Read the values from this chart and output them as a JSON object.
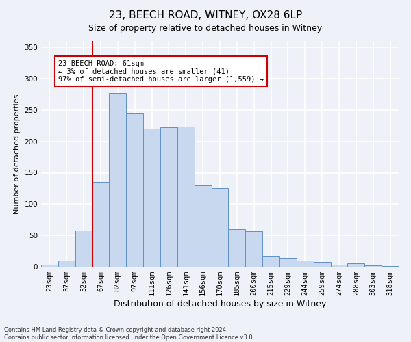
{
  "title1": "23, BEECH ROAD, WITNEY, OX28 6LP",
  "title2": "Size of property relative to detached houses in Witney",
  "xlabel": "Distribution of detached houses by size in Witney",
  "ylabel": "Number of detached properties",
  "categories": [
    "23sqm",
    "37sqm",
    "52sqm",
    "67sqm",
    "82sqm",
    "97sqm",
    "111sqm",
    "126sqm",
    "141sqm",
    "156sqm",
    "170sqm",
    "185sqm",
    "200sqm",
    "215sqm",
    "229sqm",
    "244sqm",
    "259sqm",
    "274sqm",
    "288sqm",
    "303sqm",
    "318sqm"
  ],
  "values": [
    3,
    10,
    58,
    135,
    277,
    245,
    220,
    222,
    224,
    130,
    125,
    60,
    57,
    17,
    14,
    10,
    8,
    3,
    5,
    2,
    1
  ],
  "bar_color": "#c8d8ef",
  "bar_edge_color": "#6090c8",
  "vline_color": "#cc0000",
  "vline_position": 2.5,
  "annotation_text": "23 BEECH ROAD: 61sqm\n← 3% of detached houses are smaller (41)\n97% of semi-detached houses are larger (1,559) →",
  "annotation_box_color": "white",
  "annotation_box_edge": "#cc0000",
  "ylim": [
    0,
    360
  ],
  "yticks": [
    0,
    50,
    100,
    150,
    200,
    250,
    300,
    350
  ],
  "footer1": "Contains HM Land Registry data © Crown copyright and database right 2024.",
  "footer2": "Contains public sector information licensed under the Open Government Licence v3.0.",
  "background_color": "#eef2f8",
  "grid_color": "white",
  "title1_fontsize": 11,
  "title2_fontsize": 9,
  "ylabel_fontsize": 8,
  "xlabel_fontsize": 9,
  "tick_fontsize": 7.5,
  "annotation_fontsize": 7.5,
  "footer_fontsize": 6
}
